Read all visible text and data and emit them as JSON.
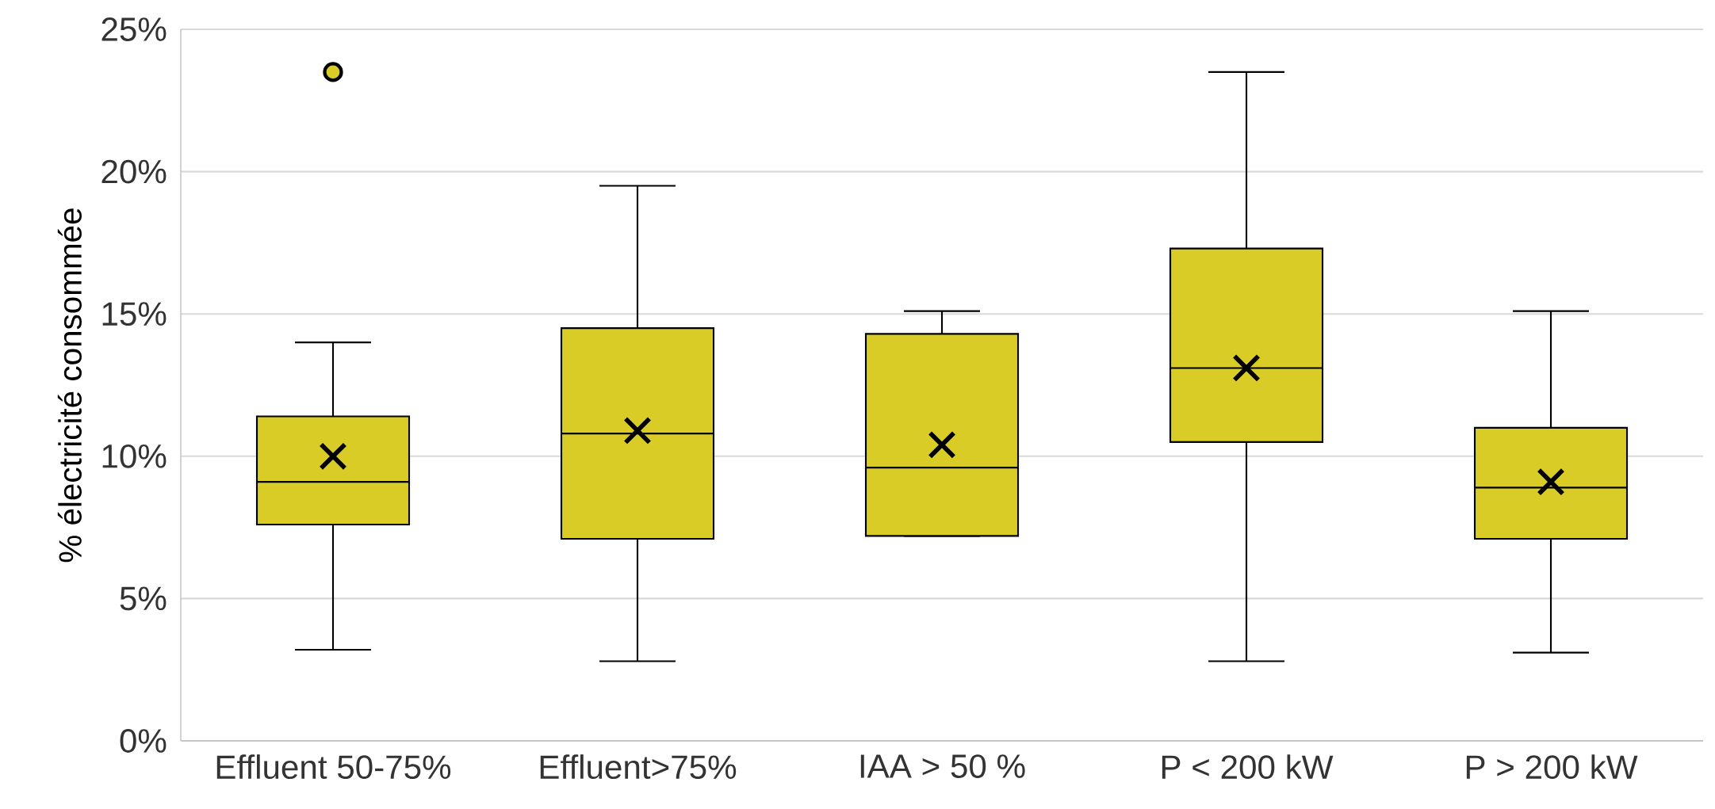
{
  "chart_data": {
    "type": "box",
    "ylabel": "% électricité consommée",
    "categories": [
      "Effluent 50-75%",
      "Effluent>75%",
      "IAA > 50 %",
      "P < 200 kW",
      "P > 200 kW"
    ],
    "boxes": [
      {
        "low": 3.2,
        "q1": 7.6,
        "median": 9.1,
        "q3": 11.4,
        "high": 14.0,
        "mean": 10.0,
        "outliers": [
          23.5
        ]
      },
      {
        "low": 2.8,
        "q1": 7.1,
        "median": 10.8,
        "q3": 14.5,
        "high": 19.5,
        "mean": 10.9
      },
      {
        "low": 7.2,
        "q1": 7.2,
        "median": 9.6,
        "q3": 14.3,
        "high": 15.1,
        "mean": 10.4
      },
      {
        "low": 2.8,
        "q1": 10.5,
        "median": 13.1,
        "q3": 17.3,
        "high": 23.5,
        "mean": 13.1
      },
      {
        "low": 3.1,
        "q1": 7.1,
        "median": 8.9,
        "q3": 11.0,
        "high": 15.1,
        "mean": 9.1
      }
    ],
    "color": "#d9cc26",
    "ylim": [
      0,
      25
    ],
    "yticks": [
      {
        "value": 0,
        "label": "0%"
      },
      {
        "value": 5,
        "label": "5%"
      },
      {
        "value": 10,
        "label": "10%"
      },
      {
        "value": 15,
        "label": "15%"
      },
      {
        "value": 20,
        "label": "20%"
      },
      {
        "value": 25,
        "label": "25%"
      }
    ],
    "grid": "y"
  }
}
